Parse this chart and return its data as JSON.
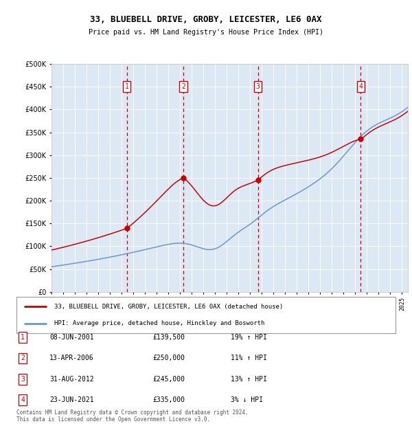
{
  "title": "33, BLUEBELL DRIVE, GROBY, LEICESTER, LE6 0AX",
  "subtitle": "Price paid vs. HM Land Registry's House Price Index (HPI)",
  "bg_color": "#dce9f5",
  "ylim": [
    0,
    500000
  ],
  "yticks": [
    0,
    50000,
    100000,
    150000,
    200000,
    250000,
    300000,
    350000,
    400000,
    450000,
    500000
  ],
  "sale_dates": [
    2001.44,
    2006.28,
    2012.66,
    2021.47
  ],
  "sale_prices": [
    139500,
    250000,
    245000,
    335000
  ],
  "sale_numbers": [
    "1",
    "2",
    "3",
    "4"
  ],
  "legend_entries": [
    "33, BLUEBELL DRIVE, GROBY, LEICESTER, LE6 0AX (detached house)",
    "HPI: Average price, detached house, Hinckley and Bosworth"
  ],
  "table_rows": [
    [
      "1",
      "08-JUN-2001",
      "£139,500",
      "19% ↑ HPI"
    ],
    [
      "2",
      "13-APR-2006",
      "£250,000",
      "11% ↑ HPI"
    ],
    [
      "3",
      "31-AUG-2012",
      "£245,000",
      "13% ↑ HPI"
    ],
    [
      "4",
      "23-JUN-2021",
      "£335,000",
      "3% ↓ HPI"
    ]
  ],
  "footer": "Contains HM Land Registry data © Crown copyright and database right 2024.\nThis data is licensed under the Open Government Licence v3.0.",
  "line_color_red": "#cc0000",
  "line_color_blue": "#6699cc",
  "vline_color": "#cc0000",
  "number_box_color": "#cc0000"
}
